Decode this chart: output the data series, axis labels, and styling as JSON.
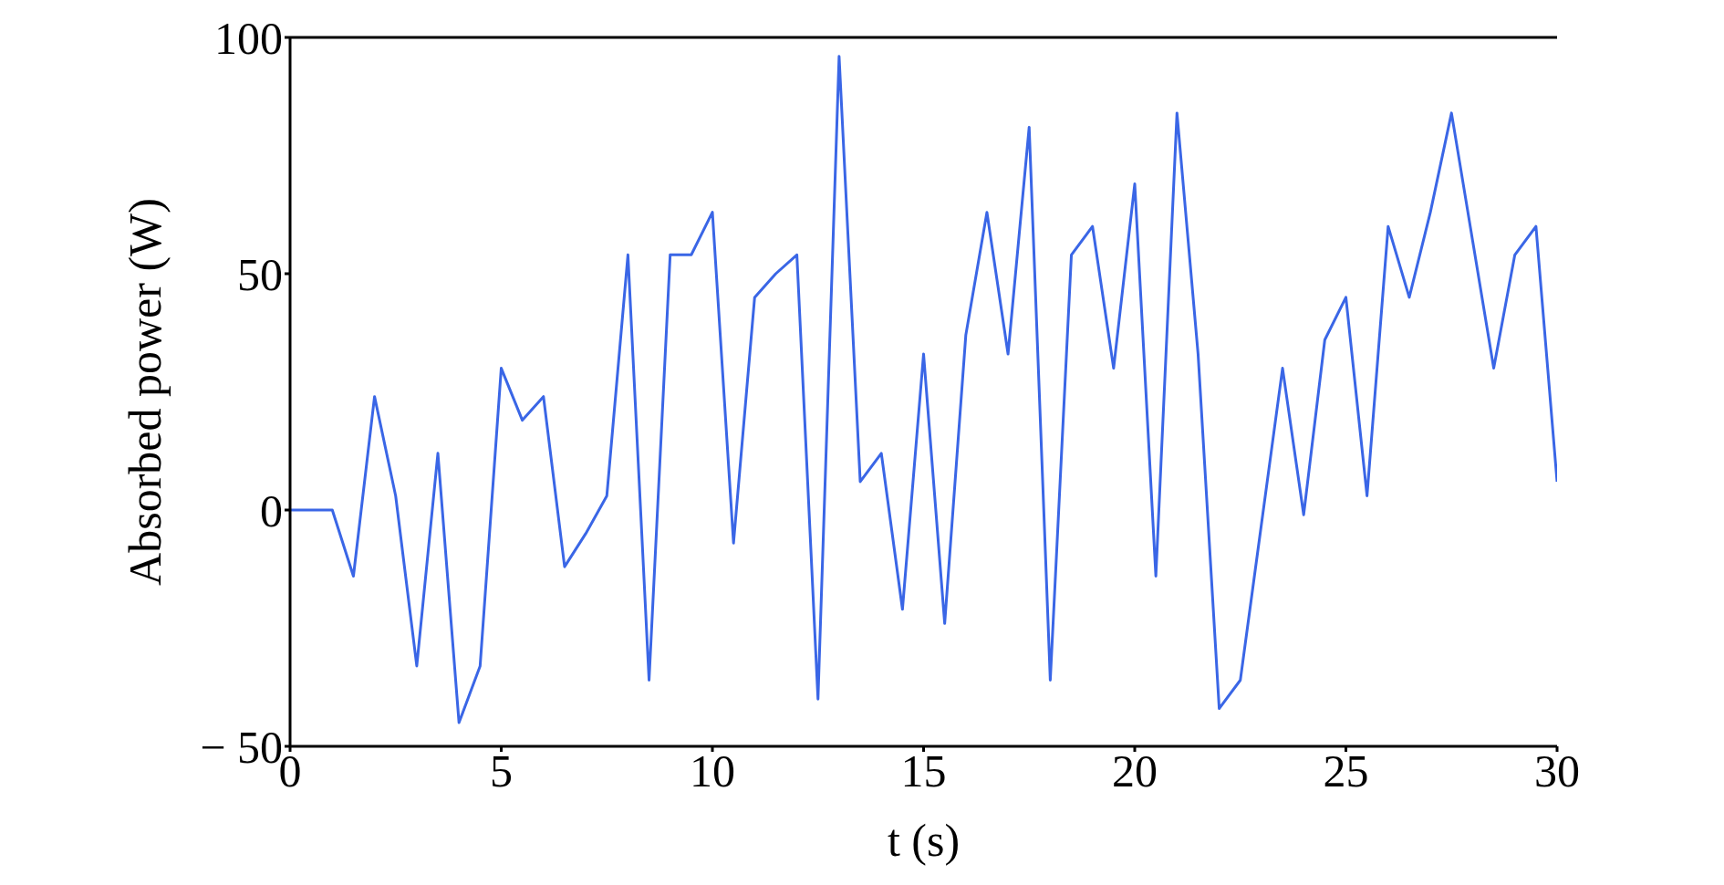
{
  "chart_data": {
    "type": "line",
    "xlabel": "t (s)",
    "ylabel": "Absorbed power (W)",
    "x": [
      0,
      0.5,
      1,
      1.5,
      2,
      2.5,
      3,
      3.5,
      4,
      4.5,
      5,
      5.5,
      6,
      6.5,
      7,
      7.5,
      8,
      8.5,
      9,
      9.5,
      10,
      10.5,
      11,
      11.5,
      12,
      12.5,
      13,
      13.5,
      14,
      14.5,
      15,
      15.5,
      16,
      16.5,
      17,
      17.5,
      18,
      18.5,
      19,
      19.5,
      20,
      20.5,
      21,
      21.5,
      22,
      22.5,
      23,
      23.5,
      24,
      24.5,
      25,
      25.5,
      26,
      26.5,
      27,
      27.5,
      28,
      28.5,
      29,
      29.5,
      30
    ],
    "series": [
      {
        "color": "#3a66e6",
        "values": [
          0,
          0,
          0,
          -14,
          24,
          3,
          -33,
          12,
          -45,
          -33,
          30,
          19,
          24,
          -12,
          -5,
          3,
          54,
          -36,
          54,
          54,
          63,
          -7,
          45,
          50,
          54,
          -40,
          96,
          6,
          12,
          -21,
          33,
          -24,
          37,
          63,
          33,
          81,
          -36,
          54,
          60,
          30,
          69,
          -14,
          84,
          33,
          -42,
          -36,
          -3,
          30,
          -1,
          36,
          45,
          3,
          60,
          45,
          63,
          84,
          57,
          30,
          54,
          60,
          6
        ]
      }
    ],
    "xlim": [
      0,
      30
    ],
    "xticks": [
      0,
      5,
      10,
      15,
      20,
      25,
      30
    ],
    "ylim": [
      -50,
      100
    ],
    "yticks": [
      {
        "value": -50,
        "label": "− 50"
      },
      0,
      50,
      100
    ],
    "grid": false,
    "legend": false,
    "marker": "none",
    "line_style": "solid"
  }
}
